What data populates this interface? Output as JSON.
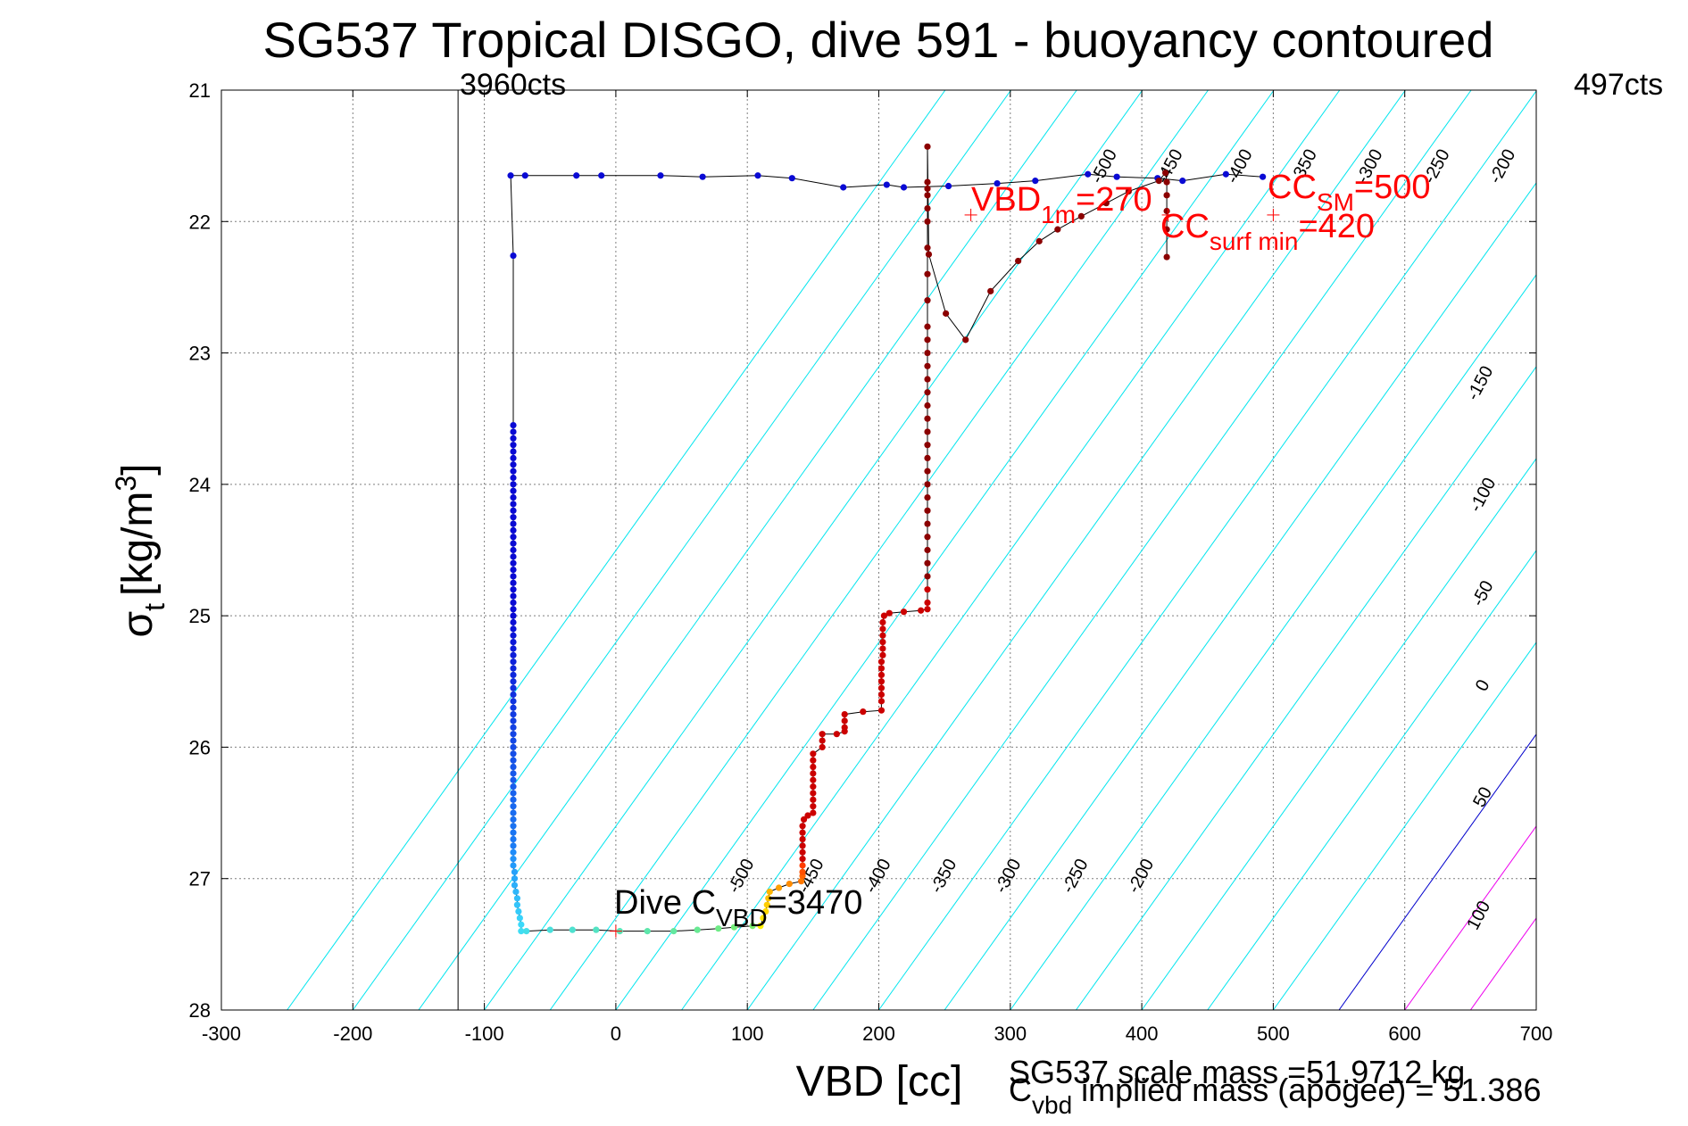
{
  "chart_data": {
    "type": "scatter",
    "title": "SG537 Tropical DISGO, dive 591 - buoyancy contoured",
    "xlabel": "VBD [cc]",
    "ylabel": {
      "main": "σ",
      "sub": "t",
      "units_pre": "[kg/m",
      "units_sup": "3",
      "units_post": "]"
    },
    "xlim": [
      -300,
      700
    ],
    "ylim": [
      21,
      28
    ],
    "y_reversed": true,
    "grid": true,
    "xticks": [
      -300,
      -200,
      -100,
      0,
      100,
      200,
      300,
      400,
      500,
      600,
      700
    ],
    "yticks": [
      21,
      22,
      23,
      24,
      25,
      26,
      27,
      28
    ],
    "colors": {
      "contour_negative": "#00e5ee",
      "contour_zero": "#0000cc",
      "contour_positive": "#ee00ee",
      "annotation_red": "#ff0000",
      "trace": "#000000",
      "grid": "#7f7f7f"
    },
    "annotations": {
      "cts_left": {
        "text": "3960cts",
        "x": -120
      },
      "cts_right": {
        "text": "497cts"
      },
      "dive_c_vbd": {
        "pre": "Dive C",
        "sub": "VBD",
        "post": "=3470",
        "x": 0,
        "y": 27.4
      },
      "vbd_1m": {
        "pre": "VBD",
        "sub": "1m",
        "post": "=270",
        "x": 270,
        "y": 21.95
      },
      "cc_sm": {
        "pre": "CC",
        "sub": "SM",
        "post": "=500",
        "x": 500,
        "y": 21.95
      },
      "cc_surf_min": {
        "pre": "CC",
        "sub": "surf min",
        "post": "=420",
        "x": 420,
        "y": 21.95
      },
      "scale_mass": "SG537 scale mass =51.9712 kg",
      "implied_mass": {
        "pre": "C",
        "sub": "vbd",
        "post": " implied mass (apogee) = 51.386"
      }
    },
    "contour_levels": [
      -500,
      -450,
      -400,
      -350,
      -300,
      -250,
      -200,
      -150,
      -100,
      -50,
      0,
      50,
      100
    ],
    "contour_labels": [
      {
        "text": "-500",
        "x": 375,
        "y": 21.6
      },
      {
        "text": "-450",
        "x": 425,
        "y": 21.6
      },
      {
        "text": "-400",
        "x": 478,
        "y": 21.6
      },
      {
        "text": "-350",
        "x": 527,
        "y": 21.6
      },
      {
        "text": "-300",
        "x": 577,
        "y": 21.6
      },
      {
        "text": "-250",
        "x": 628,
        "y": 21.6
      },
      {
        "text": "-200",
        "x": 678,
        "y": 21.6
      },
      {
        "text": "-150",
        "x": 661,
        "y": 23.25
      },
      {
        "text": "-100",
        "x": 663,
        "y": 24.1
      },
      {
        "text": "-50",
        "x": 663,
        "y": 24.85
      },
      {
        "text": "0",
        "x": 663,
        "y": 25.55
      },
      {
        "text": "50",
        "x": 663,
        "y": 26.4
      },
      {
        "text": "100",
        "x": 660,
        "y": 27.3
      },
      {
        "text": "-500",
        "x": 99,
        "y": 27.0
      },
      {
        "text": "-450",
        "x": 152,
        "y": 27.0
      },
      {
        "text": "-400",
        "x": 203,
        "y": 27.0
      },
      {
        "text": "-350",
        "x": 253,
        "y": 27.0
      },
      {
        "text": "-300",
        "x": 302,
        "y": 27.0
      },
      {
        "text": "-250",
        "x": 353,
        "y": 27.0
      },
      {
        "text": "-200",
        "x": 403,
        "y": 27.0
      }
    ],
    "dive_series": {
      "name": "",
      "color": "#0000cc",
      "points": [
        [
          -80,
          21.65
        ],
        [
          -69,
          21.65
        ],
        [
          -30,
          21.65
        ],
        [
          -11,
          21.65
        ],
        [
          34,
          21.65
        ],
        [
          66,
          21.66
        ],
        [
          108,
          21.65
        ],
        [
          134,
          21.67
        ],
        [
          173,
          21.74
        ],
        [
          206,
          21.72
        ],
        [
          219,
          21.74
        ],
        [
          253,
          21.73
        ],
        [
          290,
          21.71
        ],
        [
          319,
          21.69
        ],
        [
          359,
          21.64
        ],
        [
          381,
          21.66
        ],
        [
          412,
          21.67
        ],
        [
          431,
          21.69
        ],
        [
          464,
          21.64
        ],
        [
          492,
          21.66
        ],
        [
          -78,
          22.26
        ],
        [
          -78,
          23.55
        ],
        [
          -78,
          23.6
        ],
        [
          -78,
          23.65
        ],
        [
          -78,
          23.7
        ],
        [
          -78,
          23.75
        ],
        [
          -78,
          23.8
        ],
        [
          -78,
          23.85
        ],
        [
          -78,
          23.9
        ],
        [
          -78,
          23.95
        ],
        [
          -78,
          24.0
        ],
        [
          -78,
          24.05
        ],
        [
          -78,
          24.1
        ],
        [
          -78,
          24.15
        ],
        [
          -78,
          24.2
        ],
        [
          -78,
          24.25
        ],
        [
          -78,
          24.3
        ],
        [
          -78,
          24.35
        ],
        [
          -78,
          24.4
        ],
        [
          -78,
          24.45
        ],
        [
          -78,
          24.5
        ],
        [
          -78,
          24.55
        ],
        [
          -78,
          24.6
        ],
        [
          -78,
          24.65
        ],
        [
          -78,
          24.7
        ],
        [
          -78,
          24.75
        ],
        [
          -78,
          24.8
        ],
        [
          -78,
          24.85
        ],
        [
          -78,
          24.9
        ],
        [
          -78,
          24.95
        ],
        [
          -78,
          25.0
        ],
        [
          -78,
          25.05
        ],
        [
          -78,
          25.1
        ],
        [
          -78,
          25.15
        ],
        [
          -78,
          25.2
        ],
        [
          -78,
          25.25
        ],
        [
          -78,
          25.3
        ],
        [
          -78,
          25.35
        ],
        [
          -78,
          25.4
        ],
        [
          -78,
          25.45
        ],
        [
          -78,
          25.5
        ],
        [
          -78,
          25.55
        ],
        [
          -78,
          25.6
        ],
        [
          -78,
          25.65
        ],
        [
          -78,
          25.7
        ],
        [
          -78,
          25.75
        ],
        [
          -78,
          25.8
        ],
        [
          -78,
          25.85
        ],
        [
          -78,
          25.9
        ],
        [
          -78,
          25.95
        ],
        [
          -78,
          26.0
        ],
        [
          -78,
          26.05
        ],
        [
          -78,
          26.1
        ],
        [
          -78,
          26.15
        ],
        [
          -78,
          26.2
        ],
        [
          -78,
          26.25
        ],
        [
          -78,
          26.3
        ],
        [
          -78,
          26.35
        ],
        [
          -78,
          26.4
        ],
        [
          -78,
          26.45
        ],
        [
          -78,
          26.5
        ],
        [
          -78,
          26.55
        ],
        [
          -78,
          26.6
        ],
        [
          -78,
          26.65
        ],
        [
          -78,
          26.7
        ],
        [
          -78,
          26.75
        ]
      ]
    },
    "dive_tail": {
      "name": "",
      "points": [
        [
          -78,
          26.8
        ],
        [
          -78,
          26.85
        ],
        [
          -78,
          26.9
        ],
        [
          -77,
          26.95
        ],
        [
          -77,
          27.0
        ],
        [
          -77,
          27.05
        ],
        [
          -76,
          27.1
        ],
        [
          -75,
          27.15
        ],
        [
          -75,
          27.2
        ],
        [
          -74,
          27.25
        ],
        [
          -73,
          27.3
        ],
        [
          -72,
          27.35
        ],
        [
          -72,
          27.4
        ],
        [
          -68,
          27.4
        ],
        [
          -50,
          27.39
        ],
        [
          -33,
          27.39
        ],
        [
          -15,
          27.39
        ],
        [
          3,
          27.4
        ],
        [
          24,
          27.4
        ],
        [
          44,
          27.4
        ],
        [
          62,
          27.39
        ],
        [
          78,
          27.38
        ],
        [
          90,
          27.37
        ],
        [
          104,
          27.36
        ]
      ]
    },
    "climb_series": {
      "name": "",
      "points": [
        [
          110,
          27.36
        ],
        [
          112,
          27.3
        ],
        [
          114,
          27.25
        ],
        [
          115,
          27.2
        ],
        [
          116,
          27.15
        ],
        [
          117,
          27.1
        ],
        [
          124,
          27.07
        ],
        [
          132,
          27.04
        ],
        [
          141,
          27.02
        ],
        [
          142,
          26.98
        ],
        [
          142,
          26.95
        ],
        [
          142,
          26.9
        ],
        [
          142,
          26.85
        ],
        [
          142,
          26.8
        ],
        [
          142,
          26.75
        ],
        [
          142,
          26.7
        ],
        [
          142,
          26.65
        ],
        [
          142,
          26.6
        ],
        [
          143,
          26.55
        ],
        [
          146,
          26.52
        ],
        [
          150,
          26.5
        ],
        [
          150,
          26.45
        ],
        [
          150,
          26.4
        ],
        [
          150,
          26.35
        ],
        [
          150,
          26.3
        ],
        [
          150,
          26.25
        ],
        [
          150,
          26.2
        ],
        [
          150,
          26.15
        ],
        [
          150,
          26.1
        ],
        [
          150,
          26.05
        ],
        [
          157,
          26.0
        ],
        [
          157,
          25.95
        ],
        [
          157,
          25.9
        ],
        [
          168,
          25.9
        ],
        [
          174,
          25.88
        ],
        [
          174,
          25.85
        ],
        [
          174,
          25.8
        ],
        [
          174,
          25.75
        ],
        [
          188,
          25.73
        ],
        [
          202,
          25.72
        ],
        [
          202,
          25.65
        ],
        [
          202,
          25.6
        ],
        [
          202,
          25.55
        ],
        [
          202,
          25.5
        ],
        [
          202,
          25.45
        ],
        [
          202,
          25.4
        ],
        [
          202,
          25.35
        ],
        [
          203,
          25.3
        ],
        [
          203,
          25.25
        ],
        [
          203,
          25.2
        ],
        [
          203,
          25.15
        ],
        [
          203,
          25.1
        ],
        [
          203,
          25.05
        ],
        [
          204,
          25.0
        ],
        [
          208,
          24.98
        ],
        [
          219,
          24.97
        ],
        [
          232,
          24.96
        ],
        [
          237,
          24.95
        ],
        [
          237,
          24.9
        ],
        [
          237,
          24.8
        ],
        [
          237,
          24.7
        ],
        [
          237,
          24.6
        ],
        [
          237,
          24.5
        ],
        [
          237,
          24.4
        ],
        [
          237,
          24.3
        ],
        [
          237,
          24.2
        ],
        [
          237,
          24.1
        ],
        [
          237,
          24.0
        ],
        [
          237,
          23.9
        ],
        [
          237,
          23.8
        ],
        [
          237,
          23.7
        ],
        [
          237,
          23.6
        ],
        [
          237,
          23.5
        ],
        [
          237,
          23.4
        ],
        [
          237,
          23.3
        ],
        [
          237,
          23.2
        ],
        [
          237,
          23.1
        ],
        [
          237,
          23.0
        ],
        [
          237,
          22.9
        ],
        [
          237,
          22.8
        ],
        [
          237,
          22.6
        ],
        [
          237,
          22.4
        ],
        [
          237,
          22.2
        ],
        [
          237,
          22.0
        ],
        [
          237,
          21.9
        ],
        [
          237,
          21.8
        ],
        [
          237,
          21.75
        ],
        [
          237,
          21.7
        ],
        [
          237,
          21.43
        ],
        [
          238,
          22.25
        ],
        [
          251,
          22.7
        ],
        [
          266,
          22.9
        ],
        [
          285,
          22.53
        ],
        [
          306,
          22.3
        ],
        [
          322,
          22.15
        ],
        [
          336,
          22.06
        ],
        [
          354,
          21.96
        ],
        [
          373,
          21.86
        ],
        [
          390,
          21.77
        ],
        [
          413,
          21.69
        ],
        [
          418,
          21.63
        ],
        [
          419,
          21.7
        ],
        [
          419,
          21.8
        ],
        [
          419,
          21.92
        ],
        [
          419,
          22.06
        ],
        [
          419,
          22.27
        ]
      ]
    }
  }
}
